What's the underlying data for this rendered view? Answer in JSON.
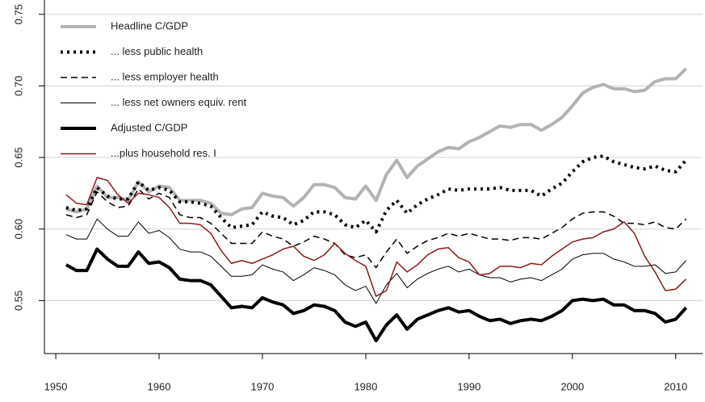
{
  "chart_data": {
    "type": "line",
    "x": [
      1951,
      1952,
      1953,
      1954,
      1955,
      1956,
      1957,
      1958,
      1959,
      1960,
      1961,
      1962,
      1963,
      1964,
      1965,
      1966,
      1967,
      1968,
      1969,
      1970,
      1971,
      1972,
      1973,
      1974,
      1975,
      1976,
      1977,
      1978,
      1979,
      1980,
      1981,
      1982,
      1983,
      1984,
      1985,
      1986,
      1987,
      1988,
      1989,
      1990,
      1991,
      1992,
      1993,
      1994,
      1995,
      1996,
      1997,
      1998,
      1999,
      2000,
      2001,
      2002,
      2003,
      2004,
      2005,
      2006,
      2007,
      2008,
      2009,
      2010,
      2011
    ],
    "series": [
      {
        "name": "Headline C/GDP",
        "color": "#b3b3b3",
        "linewidth": 4,
        "dash": "none",
        "values": [
          0.614,
          0.612,
          0.614,
          0.63,
          0.622,
          0.622,
          0.62,
          0.633,
          0.626,
          0.63,
          0.629,
          0.62,
          0.62,
          0.62,
          0.618,
          0.611,
          0.61,
          0.614,
          0.615,
          0.625,
          0.623,
          0.622,
          0.616,
          0.622,
          0.631,
          0.631,
          0.629,
          0.622,
          0.621,
          0.63,
          0.62,
          0.638,
          0.648,
          0.636,
          0.644,
          0.649,
          0.654,
          0.657,
          0.656,
          0.661,
          0.664,
          0.668,
          0.672,
          0.671,
          0.673,
          0.673,
          0.669,
          0.673,
          0.678,
          0.686,
          0.695,
          0.699,
          0.701,
          0.698,
          0.698,
          0.696,
          0.697,
          0.703,
          0.705,
          0.705,
          0.712
        ]
      },
      {
        "name": "... less public health",
        "color": "#000000",
        "linewidth": 4,
        "dash": "3,5",
        "values": [
          0.615,
          0.613,
          0.614,
          0.629,
          0.623,
          0.621,
          0.621,
          0.633,
          0.627,
          0.629,
          0.627,
          0.619,
          0.619,
          0.618,
          0.616,
          0.608,
          0.601,
          0.602,
          0.603,
          0.612,
          0.609,
          0.608,
          0.603,
          0.606,
          0.612,
          0.612,
          0.61,
          0.603,
          0.601,
          0.606,
          0.598,
          0.613,
          0.62,
          0.611,
          0.617,
          0.621,
          0.624,
          0.628,
          0.627,
          0.628,
          0.628,
          0.628,
          0.629,
          0.627,
          0.627,
          0.627,
          0.623,
          0.628,
          0.632,
          0.64,
          0.647,
          0.65,
          0.651,
          0.647,
          0.645,
          0.643,
          0.642,
          0.644,
          0.641,
          0.64,
          0.648
        ]
      },
      {
        "name": "... less employer health",
        "color": "#000000",
        "linewidth": 1.5,
        "dash": "8,5",
        "values": [
          0.61,
          0.608,
          0.61,
          0.626,
          0.619,
          0.615,
          0.616,
          0.628,
          0.621,
          0.625,
          0.622,
          0.61,
          0.608,
          0.608,
          0.604,
          0.597,
          0.59,
          0.59,
          0.59,
          0.598,
          0.595,
          0.593,
          0.588,
          0.591,
          0.595,
          0.593,
          0.59,
          0.582,
          0.58,
          0.582,
          0.573,
          0.584,
          0.593,
          0.583,
          0.588,
          0.592,
          0.594,
          0.597,
          0.595,
          0.597,
          0.595,
          0.593,
          0.593,
          0.592,
          0.594,
          0.594,
          0.593,
          0.597,
          0.601,
          0.607,
          0.611,
          0.612,
          0.612,
          0.609,
          0.604,
          0.604,
          0.603,
          0.605,
          0.601,
          0.6,
          0.607
        ]
      },
      {
        "name": "... less net owners equiv. rent",
        "color": "#000000",
        "linewidth": 1,
        "dash": "none",
        "values": [
          0.596,
          0.593,
          0.593,
          0.607,
          0.6,
          0.595,
          0.595,
          0.605,
          0.597,
          0.599,
          0.594,
          0.586,
          0.584,
          0.584,
          0.581,
          0.574,
          0.567,
          0.567,
          0.568,
          0.575,
          0.572,
          0.57,
          0.564,
          0.568,
          0.573,
          0.571,
          0.568,
          0.561,
          0.557,
          0.56,
          0.548,
          0.561,
          0.569,
          0.559,
          0.565,
          0.569,
          0.572,
          0.574,
          0.57,
          0.572,
          0.568,
          0.566,
          0.566,
          0.563,
          0.565,
          0.566,
          0.564,
          0.568,
          0.572,
          0.579,
          0.582,
          0.583,
          0.583,
          0.579,
          0.577,
          0.574,
          0.574,
          0.575,
          0.569,
          0.57,
          0.578
        ]
      },
      {
        "name": "Adjusted C/GDP",
        "color": "#000000",
        "linewidth": 4,
        "dash": "none",
        "values": [
          0.575,
          0.571,
          0.571,
          0.586,
          0.579,
          0.574,
          0.574,
          0.584,
          0.576,
          0.577,
          0.573,
          0.565,
          0.564,
          0.564,
          0.561,
          0.553,
          0.545,
          0.546,
          0.545,
          0.552,
          0.549,
          0.547,
          0.541,
          0.543,
          0.547,
          0.546,
          0.543,
          0.535,
          0.532,
          0.535,
          0.522,
          0.533,
          0.54,
          0.53,
          0.537,
          0.54,
          0.543,
          0.545,
          0.542,
          0.543,
          0.539,
          0.536,
          0.537,
          0.534,
          0.536,
          0.537,
          0.536,
          0.539,
          0.543,
          0.55,
          0.551,
          0.55,
          0.551,
          0.547,
          0.547,
          0.543,
          0.543,
          0.541,
          0.535,
          0.537,
          0.545
        ]
      },
      {
        "name": "...plus household res. I",
        "color": "#8b1a1a",
        "linewidth": 1.5,
        "dash": "none",
        "values": [
          0.624,
          0.618,
          0.617,
          0.636,
          0.634,
          0.624,
          0.618,
          0.625,
          0.624,
          0.622,
          0.615,
          0.604,
          0.604,
          0.603,
          0.597,
          0.585,
          0.576,
          0.578,
          0.576,
          0.579,
          0.582,
          0.586,
          0.588,
          0.581,
          0.578,
          0.582,
          0.59,
          0.583,
          0.578,
          0.574,
          0.553,
          0.557,
          0.577,
          0.57,
          0.575,
          0.582,
          0.586,
          0.587,
          0.58,
          0.577,
          0.568,
          0.569,
          0.574,
          0.574,
          0.573,
          0.576,
          0.575,
          0.581,
          0.586,
          0.591,
          0.593,
          0.594,
          0.598,
          0.6,
          0.605,
          0.597,
          0.581,
          0.57,
          0.557,
          0.558,
          0.565
        ]
      }
    ],
    "xlim": [
      1948.9,
      2012.6
    ],
    "xticks": [
      1950,
      1960,
      1970,
      1980,
      1990,
      2000,
      2010
    ],
    "ylim": [
      0.513,
      0.76
    ],
    "yticks": [
      0.55,
      {
        "value": 0.6,
        "label": "0.60"
      },
      0.65,
      {
        "value": 0.7,
        "label": "0.70"
      },
      0.75
    ],
    "grid": true,
    "legend": "top-left"
  }
}
